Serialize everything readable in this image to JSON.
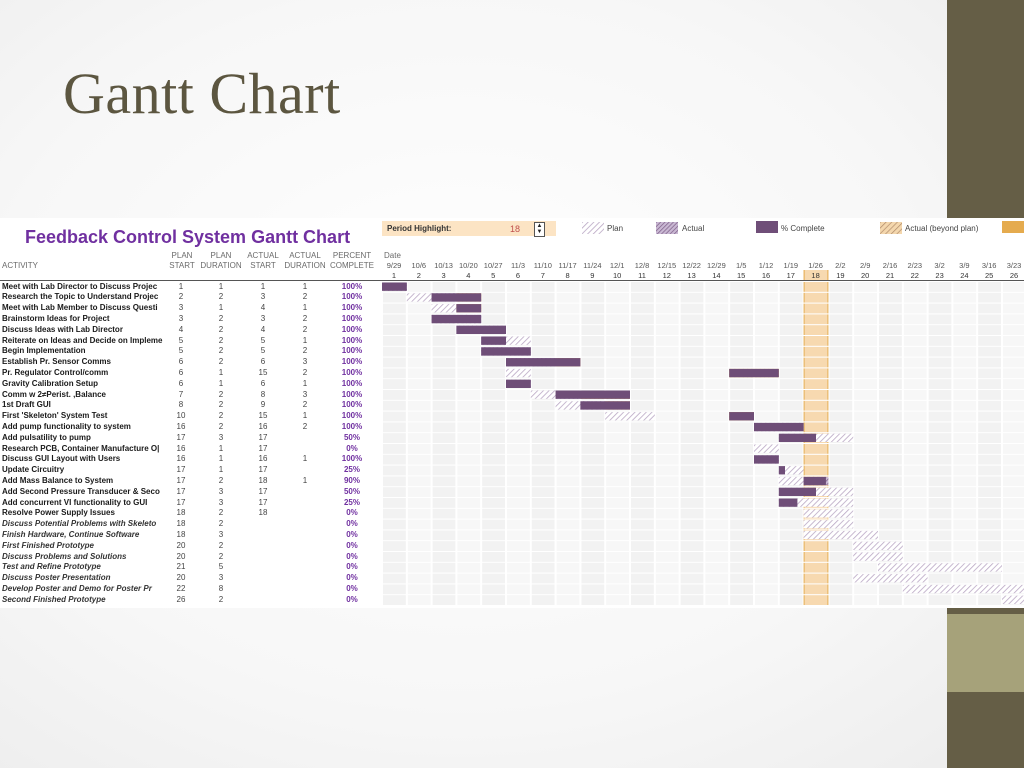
{
  "slide_title": "Gantt Chart",
  "colors": {
    "plan": "#b9a7c4",
    "actual": "#7b5c86",
    "complete": "#6f4e78",
    "beyond": "#e5ab4e",
    "highlight": "#f7d9b0",
    "title": "#7030a0"
  },
  "chart_data": {
    "type": "table",
    "title": "Feedback Control System Gantt Chart",
    "period_highlight_label": "Period Highlight:",
    "period_highlight": 18,
    "legend": [
      "Plan",
      "Actual",
      "% Complete",
      "Actual (beyond plan)"
    ],
    "headers": {
      "activity": "ACTIVITY",
      "plan_start": [
        "PLAN",
        "START"
      ],
      "plan_duration": [
        "PLAN",
        "DURATION"
      ],
      "actual_start": [
        "ACTUAL",
        "START"
      ],
      "actual_duration": [
        "ACTUAL",
        "DURATION"
      ],
      "percent": [
        "PERCENT",
        "COMPLETE"
      ],
      "date": "Date"
    },
    "dates": [
      "9/29",
      "10/6",
      "10/13",
      "10/20",
      "10/27",
      "11/3",
      "11/10",
      "11/17",
      "11/24",
      "12/1",
      "12/8",
      "12/15",
      "12/22",
      "12/29",
      "1/5",
      "1/12",
      "1/19",
      "1/26",
      "2/2",
      "2/9",
      "2/16",
      "2/23",
      "3/2",
      "3/9",
      "3/16",
      "3/23"
    ],
    "periods": [
      "1",
      "2",
      "3",
      "4",
      "5",
      "6",
      "7",
      "8",
      "9",
      "10",
      "11",
      "12",
      "13",
      "14",
      "15",
      "16",
      "17",
      "18",
      "19",
      "20",
      "21",
      "22",
      "23",
      "24",
      "25",
      "26"
    ],
    "rows": [
      {
        "activity": "Meet with Lab Director to Discuss Projec",
        "plan_start": "1",
        "plan_duration": "1",
        "actual_start": "1",
        "actual_duration": "1",
        "percent": "100%",
        "italic": false
      },
      {
        "activity": "Research the Topic to Understand Projec",
        "plan_start": "2",
        "plan_duration": "2",
        "actual_start": "3",
        "actual_duration": "2",
        "percent": "100%",
        "italic": false
      },
      {
        "activity": "Meet with Lab Member to Discuss Questi",
        "plan_start": "3",
        "plan_duration": "1",
        "actual_start": "4",
        "actual_duration": "1",
        "percent": "100%",
        "italic": false
      },
      {
        "activity": "Brainstorm Ideas for Project",
        "plan_start": "3",
        "plan_duration": "2",
        "actual_start": "3",
        "actual_duration": "2",
        "percent": "100%",
        "italic": false
      },
      {
        "activity": "Discuss Ideas with Lab Director",
        "plan_start": "4",
        "plan_duration": "2",
        "actual_start": "4",
        "actual_duration": "2",
        "percent": "100%",
        "italic": false
      },
      {
        "activity": "Reiterate on Ideas and Decide on Impleme",
        "plan_start": "5",
        "plan_duration": "2",
        "actual_start": "5",
        "actual_duration": "1",
        "percent": "100%",
        "italic": false
      },
      {
        "activity": "Begin Implementation",
        "plan_start": "5",
        "plan_duration": "2",
        "actual_start": "5",
        "actual_duration": "2",
        "percent": "100%",
        "italic": false
      },
      {
        "activity": "Establish Pr. Sensor Comms",
        "plan_start": "6",
        "plan_duration": "2",
        "actual_start": "6",
        "actual_duration": "3",
        "percent": "100%",
        "italic": false
      },
      {
        "activity": "Pr. Regulator Control/comm",
        "plan_start": "6",
        "plan_duration": "1",
        "actual_start": "15",
        "actual_duration": "2",
        "percent": "100%",
        "italic": false
      },
      {
        "activity": "Gravity Calibration Setup",
        "plan_start": "6",
        "plan_duration": "1",
        "actual_start": "6",
        "actual_duration": "1",
        "percent": "100%",
        "italic": false
      },
      {
        "activity": "Comm w 2≠Perist. ,Balance",
        "plan_start": "7",
        "plan_duration": "2",
        "actual_start": "8",
        "actual_duration": "3",
        "percent": "100%",
        "italic": false
      },
      {
        "activity": "1st Draft GUI",
        "plan_start": "8",
        "plan_duration": "2",
        "actual_start": "9",
        "actual_duration": "2",
        "percent": "100%",
        "italic": false
      },
      {
        "activity": "First 'Skeleton' System Test",
        "plan_start": "10",
        "plan_duration": "2",
        "actual_start": "15",
        "actual_duration": "1",
        "percent": "100%",
        "italic": false
      },
      {
        "activity": "Add pump functionality to system",
        "plan_start": "16",
        "plan_duration": "2",
        "actual_start": "16",
        "actual_duration": "2",
        "percent": "100%",
        "italic": false
      },
      {
        "activity": "Add pulsatility to pump",
        "plan_start": "17",
        "plan_duration": "3",
        "actual_start": "17",
        "actual_duration": "",
        "percent": "50%",
        "italic": false
      },
      {
        "activity": "Research PCB, Container Manufacture O|",
        "plan_start": "16",
        "plan_duration": "1",
        "actual_start": "17",
        "actual_duration": "",
        "percent": "0%",
        "italic": false
      },
      {
        "activity": "Discuss GUI Layout with Users",
        "plan_start": "16",
        "plan_duration": "1",
        "actual_start": "16",
        "actual_duration": "1",
        "percent": "100%",
        "italic": false
      },
      {
        "activity": "Update Circuitry",
        "plan_start": "17",
        "plan_duration": "1",
        "actual_start": "17",
        "actual_duration": "",
        "percent": "25%",
        "italic": false
      },
      {
        "activity": "Add Mass Balance to System",
        "plan_start": "17",
        "plan_duration": "2",
        "actual_start": "18",
        "actual_duration": "1",
        "percent": "90%",
        "italic": false
      },
      {
        "activity": "Add Second Pressure Transducer & Seco",
        "plan_start": "17",
        "plan_duration": "3",
        "actual_start": "17",
        "actual_duration": "",
        "percent": "50%",
        "italic": false
      },
      {
        "activity": "Add concurrent VI functionality to GUI",
        "plan_start": "17",
        "plan_duration": "3",
        "actual_start": "17",
        "actual_duration": "",
        "percent": "25%",
        "italic": false
      },
      {
        "activity": "Resolve Power Supply Issues",
        "plan_start": "18",
        "plan_duration": "2",
        "actual_start": "18",
        "actual_duration": "",
        "percent": "0%",
        "italic": false
      },
      {
        "activity": "Discuss Potential Problems with Skeleto",
        "plan_start": "18",
        "plan_duration": "2",
        "actual_start": "",
        "actual_duration": "",
        "percent": "0%",
        "italic": true
      },
      {
        "activity": "Finish Hardware, Continue Software",
        "plan_start": "18",
        "plan_duration": "3",
        "actual_start": "",
        "actual_duration": "",
        "percent": "0%",
        "italic": true
      },
      {
        "activity": "First Finished Prototype",
        "plan_start": "20",
        "plan_duration": "2",
        "actual_start": "",
        "actual_duration": "",
        "percent": "0%",
        "italic": true
      },
      {
        "activity": "Discuss Problems and Solutions",
        "plan_start": "20",
        "plan_duration": "2",
        "actual_start": "",
        "actual_duration": "",
        "percent": "0%",
        "italic": true
      },
      {
        "activity": "Test and Refine Prototype",
        "plan_start": "21",
        "plan_duration": "5",
        "actual_start": "",
        "actual_duration": "",
        "percent": "0%",
        "italic": true
      },
      {
        "activity": "Discuss Poster Presentation",
        "plan_start": "20",
        "plan_duration": "3",
        "actual_start": "",
        "actual_duration": "",
        "percent": "0%",
        "italic": true
      },
      {
        "activity": "Develop Poster and Demo for Poster Pr",
        "plan_start": "22",
        "plan_duration": "8",
        "actual_start": "",
        "actual_duration": "",
        "percent": "0%",
        "italic": true
      },
      {
        "activity": "Second Finished Prototype",
        "plan_start": "26",
        "plan_duration": "2",
        "actual_start": "",
        "actual_duration": "",
        "percent": "0%",
        "italic": true
      }
    ]
  }
}
